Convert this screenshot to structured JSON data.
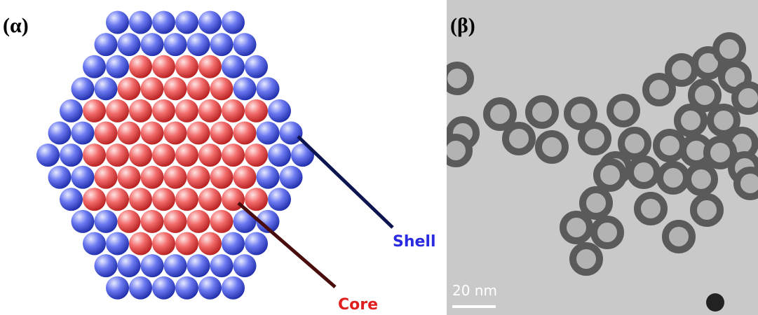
{
  "panels": [
    {
      "label": "(α)",
      "annotations": {
        "shell": "Shell",
        "core": "Core"
      }
    },
    {
      "label": "(β)",
      "scale_bar": "20 nm"
    }
  ]
}
